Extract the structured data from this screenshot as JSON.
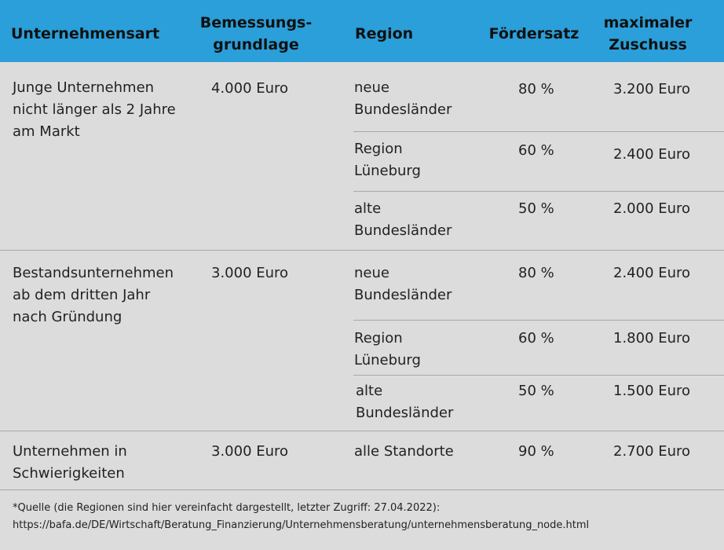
{
  "header": {
    "col1": "Unternehmensart",
    "col2": "Bemessungs-\ngrundlage",
    "col3": "Region",
    "col4": "Fördersatz",
    "col5": "maximaler\nZuschuss"
  },
  "groups": [
    {
      "type": "Junge Unternehmen\nnicht länger als 2 Jahre\nam Markt",
      "basis": "4.000 Euro",
      "rows": [
        {
          "region": "neue\nBundesländer",
          "rate": "80 %",
          "max": "3.200 Euro"
        },
        {
          "region": "Region\nLüneburg",
          "rate": "60 %",
          "max": "2.400 Euro"
        },
        {
          "region": "alte\nBundesländer",
          "rate": "50 %",
          "max": "2.000 Euro"
        }
      ]
    },
    {
      "type": "Bestandsunternehmen\nab dem dritten Jahr\nnach Gründung",
      "basis": "3.000 Euro",
      "rows": [
        {
          "region": "neue\nBundesländer",
          "rate": "80 %",
          "max": "2.400 Euro"
        },
        {
          "region": "Region\nLüneburg",
          "rate": "60 %",
          "max": "1.800 Euro"
        },
        {
          "region": "alte\nBundesländer",
          "rate": "50 %",
          "max": "1.500 Euro"
        }
      ]
    },
    {
      "type": "Unternehmen in\nSchwierigkeiten",
      "basis": "3.000 Euro",
      "rows": [
        {
          "region": "alle Standorte",
          "rate": "90 %",
          "max": "2.700 Euro"
        }
      ]
    }
  ],
  "footer": {
    "note": "*Quelle (die Regionen sind hier vereinfacht dargestellt, letzter Zugriff: 27.04.2022):\nhttps://bafa.de/DE/Wirtschaft/Beratung_Finanzierung/Unternehmensberatung/unternehmensberatung_node.html"
  }
}
